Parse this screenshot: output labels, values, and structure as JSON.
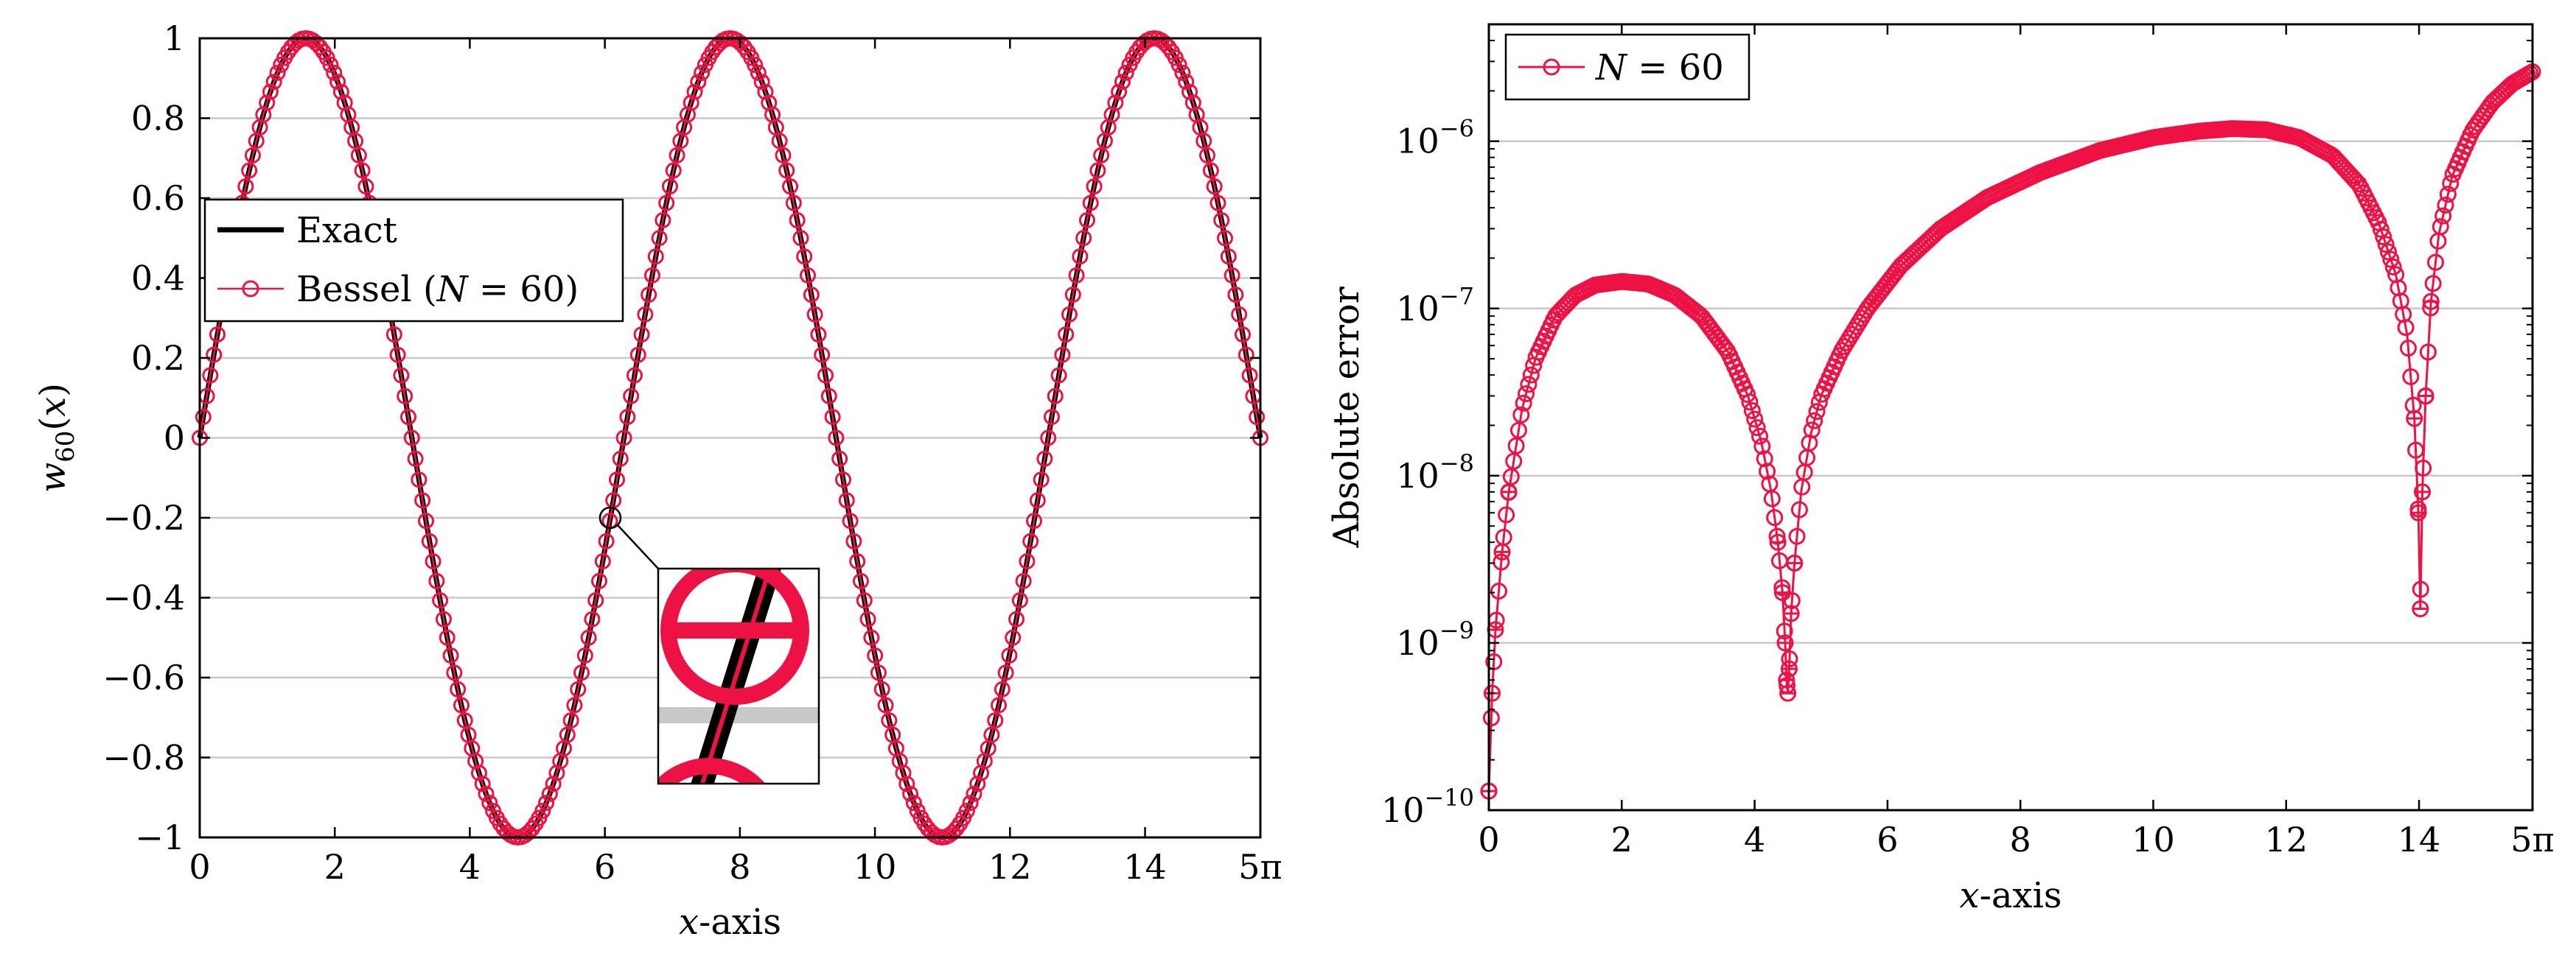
{
  "colors": {
    "exact": "#000000",
    "bessel": "#ee1144",
    "grid": "#c8c8c8"
  },
  "chart_data": [
    {
      "type": "line",
      "title": "",
      "xlabel": "x-axis",
      "ylabel": "w60(x)",
      "xlim": [
        0,
        15.708
      ],
      "ylim": [
        -1,
        1
      ],
      "xticks": [
        0,
        2,
        4,
        6,
        8,
        10,
        12,
        14,
        15.708
      ],
      "xtick_labels": [
        "0",
        "2",
        "4",
        "6",
        "8",
        "10",
        "12",
        "14",
        "5π"
      ],
      "yticks": [
        -1,
        -0.8,
        -0.6,
        -0.4,
        -0.2,
        0,
        0.2,
        0.4,
        0.6,
        0.8,
        1
      ],
      "ytick_labels": [
        "−1",
        "−0.8",
        "−0.6",
        "−0.4",
        "−0.2",
        "0",
        "0.2",
        "0.4",
        "0.6",
        "0.8",
        "1"
      ],
      "grid": "horizontal",
      "legend_position": "center-left",
      "series": [
        {
          "name": "Exact",
          "function": "sin(x)",
          "style": "line"
        },
        {
          "name": "Bessel (N = 60)",
          "function": "sin(x)",
          "style": "line-with-open-circles",
          "points": 300
        }
      ],
      "inset": "zoom-in on x ≈ 6.08, y ≈ −0.2"
    },
    {
      "type": "line",
      "title": "",
      "xlabel": "x-axis",
      "ylabel": "Absolute error",
      "yscale": "log",
      "xlim": [
        0,
        15.708
      ],
      "ylim": [
        1e-10,
        5e-06
      ],
      "xticks": [
        0,
        2,
        4,
        6,
        8,
        10,
        12,
        14,
        15.708
      ],
      "xtick_labels": [
        "0",
        "2",
        "4",
        "6",
        "8",
        "10",
        "12",
        "14",
        "5π"
      ],
      "yticks": [
        1e-10,
        1e-09,
        1e-08,
        1e-07,
        1e-06
      ],
      "ytick_labels": [
        "10",
        "10",
        "10",
        "10",
        "10"
      ],
      "ytick_exponents": [
        "−10",
        "−9",
        "−8",
        "−7",
        "−6"
      ],
      "grid": "horizontal",
      "legend_position": "top-left",
      "series": [
        {
          "name": "N = 60",
          "style": "line-with-open-circles",
          "x": [
            0,
            0.05,
            0.1,
            0.2,
            0.3,
            0.5,
            0.7,
            1.0,
            1.3,
            1.6,
            2.0,
            2.4,
            2.8,
            3.2,
            3.6,
            3.9,
            4.1,
            4.25,
            4.35,
            4.42,
            4.46,
            4.48,
            4.5,
            4.52,
            4.55,
            4.6,
            4.7,
            4.85,
            5.0,
            5.3,
            5.7,
            6.2,
            6.8,
            7.5,
            8.3,
            9.2,
            10.0,
            10.7,
            11.2,
            11.7,
            12.2,
            12.7,
            13.1,
            13.4,
            13.65,
            13.82,
            13.93,
            13.99,
            14.02,
            14.05,
            14.1,
            14.18,
            14.3,
            14.5,
            14.8,
            15.1,
            15.4,
            15.708
          ],
          "y": [
            1.3e-10,
            5e-10,
            1.2e-09,
            3.5e-09,
            8e-09,
            2.5e-08,
            5e-08,
            9e-08,
            1.2e-07,
            1.38e-07,
            1.45e-07,
            1.4e-07,
            1.2e-07,
            9e-08,
            5.5e-08,
            3e-08,
            1.6e-08,
            8e-09,
            4e-09,
            2e-09,
            1e-09,
            6e-10,
            5e-10,
            7e-10,
            1.5e-09,
            3e-09,
            8e-09,
            1.8e-08,
            3e-08,
            5.5e-08,
            1e-07,
            1.8e-07,
            3e-07,
            4.6e-07,
            6.5e-07,
            8.8e-07,
            1.05e-06,
            1.15e-06,
            1.19e-06,
            1.17e-06,
            1.05e-06,
            8.2e-07,
            5.5e-07,
            3.2e-07,
            1.6e-07,
            7e-08,
            2.2e-08,
            6e-09,
            1.6e-09,
            8e-09,
            3e-08,
            1.1e-07,
            2.8e-07,
            6.2e-07,
            1.15e-06,
            1.7e-06,
            2.2e-06,
            2.6e-06
          ]
        }
      ]
    }
  ]
}
